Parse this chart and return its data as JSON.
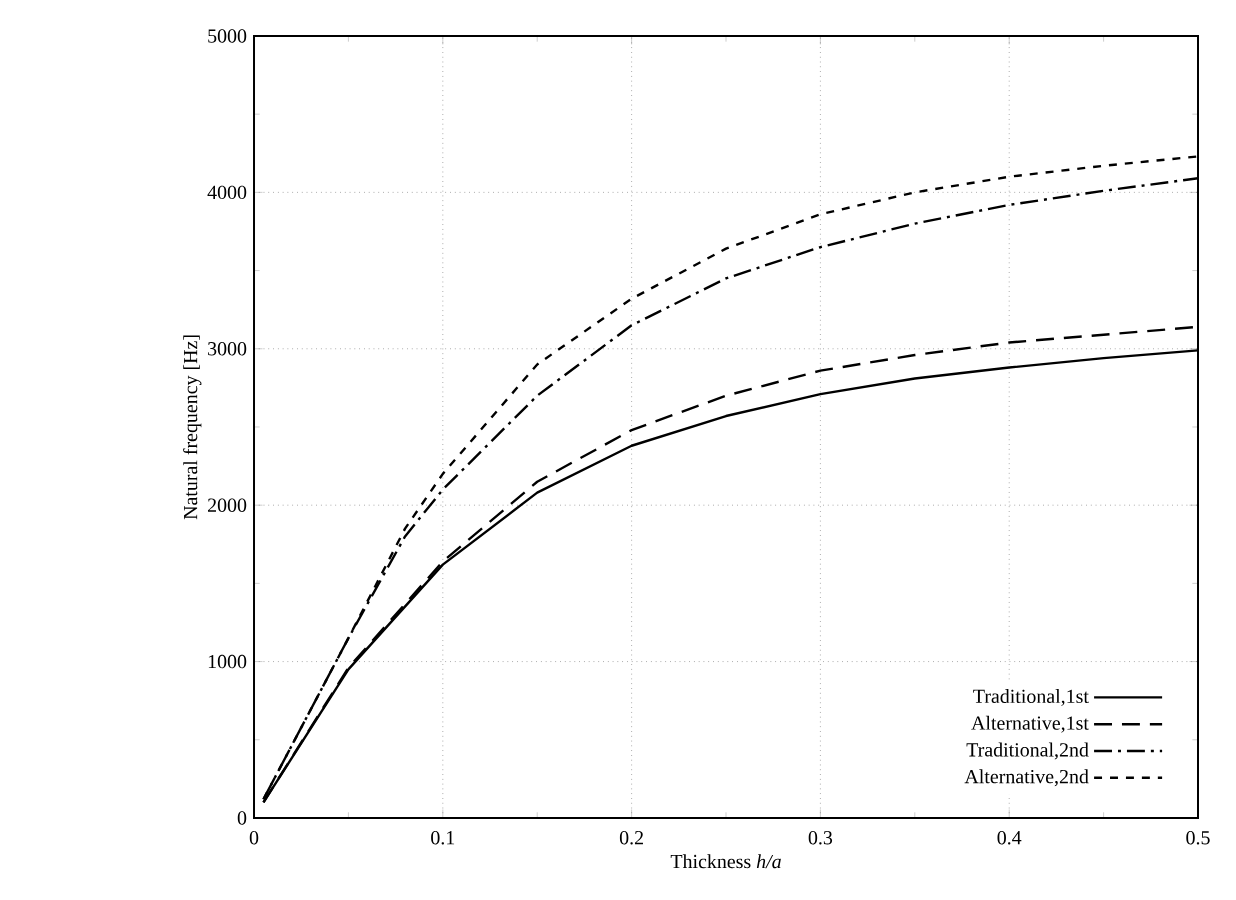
{
  "chart_data": {
    "type": "line",
    "xlabel": "Thickness *h/a*",
    "ylabel": "Natural frequency [Hz]",
    "xlim": [
      0,
      0.5
    ],
    "ylim": [
      0,
      5000
    ],
    "xticks": [
      0,
      0.1,
      0.2,
      0.3,
      0.4,
      0.5
    ],
    "yticks": [
      0,
      1000,
      2000,
      3000,
      4000,
      5000
    ],
    "grid": true,
    "legend": "bottom right",
    "series": [
      {
        "name": "Traditional,1st",
        "color": "#000000",
        "line_style": "solid",
        "x": [
          0.005,
          0.05,
          0.1,
          0.15,
          0.2,
          0.25,
          0.3,
          0.35,
          0.4,
          0.45,
          0.5
        ],
        "values": [
          100,
          950,
          1620,
          2080,
          2380,
          2570,
          2710,
          2810,
          2880,
          2940,
          2990
        ]
      },
      {
        "name": "Alternative,1st",
        "color": "#000000",
        "line_style": "dashed",
        "x": [
          0.005,
          0.05,
          0.1,
          0.15,
          0.2,
          0.25,
          0.3,
          0.35,
          0.4,
          0.45,
          0.5
        ],
        "values": [
          100,
          960,
          1640,
          2150,
          2480,
          2700,
          2860,
          2960,
          3040,
          3090,
          3140
        ]
      },
      {
        "name": "Traditional,2nd",
        "color": "#000000",
        "line_style": "dashdot",
        "x": [
          0.005,
          0.05,
          0.08,
          0.1,
          0.15,
          0.2,
          0.25,
          0.3,
          0.35,
          0.4,
          0.45,
          0.5
        ],
        "values": [
          120,
          1150,
          1800,
          2100,
          2700,
          3150,
          3450,
          3650,
          3800,
          3920,
          4010,
          4090
        ]
      },
      {
        "name": "Alternative,2nd",
        "color": "#000000",
        "line_style": "shortdashed",
        "x": [
          0.005,
          0.05,
          0.08,
          0.1,
          0.15,
          0.2,
          0.25,
          0.3,
          0.35,
          0.4,
          0.45,
          0.5
        ],
        "values": [
          120,
          1150,
          1850,
          2200,
          2900,
          3320,
          3640,
          3860,
          4000,
          4100,
          4170,
          4230
        ]
      }
    ]
  }
}
